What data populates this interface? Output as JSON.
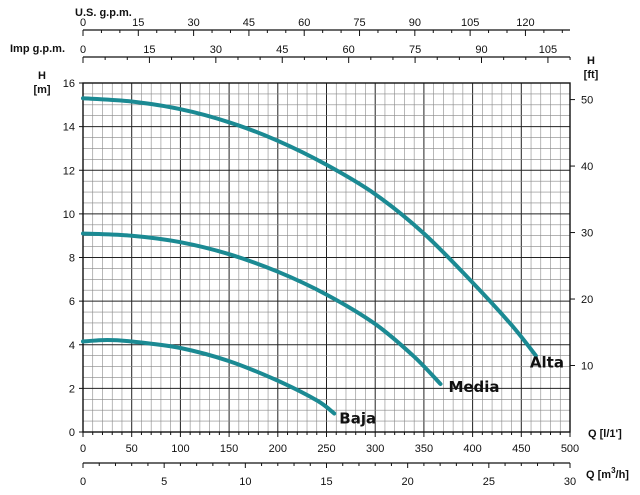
{
  "chart_data": {
    "type": "line",
    "top_axes": [
      {
        "title": "U.S. g.p.m.",
        "ticks": [
          "0",
          "15",
          "30",
          "45",
          "60",
          "75",
          "90",
          "105",
          "120"
        ],
        "step": 15,
        "per_lpm": 0.264172
      },
      {
        "title": "Imp g.p.m.",
        "ticks": [
          "0",
          "15",
          "30",
          "45",
          "60",
          "75",
          "90",
          "105"
        ],
        "step": 15,
        "per_lpm": 0.219969
      }
    ],
    "left_axis": {
      "title_line1": "H",
      "title_line2": "[m]",
      "ticks": [
        "0",
        "2",
        "4",
        "6",
        "8",
        "10",
        "12",
        "14",
        "16"
      ],
      "ylim": [
        0,
        16
      ]
    },
    "right_axis": {
      "title_line1": "H",
      "title_line2": "[ft]",
      "ticks": [
        "10",
        "20",
        "30",
        "40",
        "50"
      ],
      "per_m": 3.28084
    },
    "bottom_axis": {
      "title": "Q [l/1']",
      "ticks": [
        "0",
        "50",
        "100",
        "150",
        "200",
        "250",
        "300",
        "350",
        "400",
        "450",
        "500"
      ],
      "xlim": [
        0,
        500
      ]
    },
    "bottom_axis2": {
      "title_prefix": "Q [m",
      "title_sup": "3",
      "title_suffix": "/h]",
      "ticks": [
        "0",
        "5",
        "10",
        "15",
        "20",
        "25",
        "30"
      ],
      "step": 5,
      "per_lpm": 0.06
    },
    "grid": true,
    "line_color": "#1b8a93",
    "series": [
      {
        "name": "Alta",
        "x": [
          0,
          50,
          100,
          150,
          200,
          250,
          300,
          350,
          400,
          440,
          465
        ],
        "y": [
          15.3,
          15.15,
          14.8,
          14.2,
          13.35,
          12.25,
          10.9,
          9.1,
          6.85,
          4.9,
          3.5
        ]
      },
      {
        "name": "Media",
        "x": [
          0,
          50,
          100,
          150,
          200,
          250,
          300,
          340,
          367
        ],
        "y": [
          9.1,
          9.0,
          8.7,
          8.15,
          7.35,
          6.3,
          4.95,
          3.45,
          2.2
        ]
      },
      {
        "name": "Baja",
        "x": [
          0,
          25,
          50,
          100,
          150,
          200,
          240,
          258
        ],
        "y": [
          4.15,
          4.22,
          4.15,
          3.85,
          3.25,
          2.35,
          1.45,
          0.85
        ]
      }
    ]
  }
}
